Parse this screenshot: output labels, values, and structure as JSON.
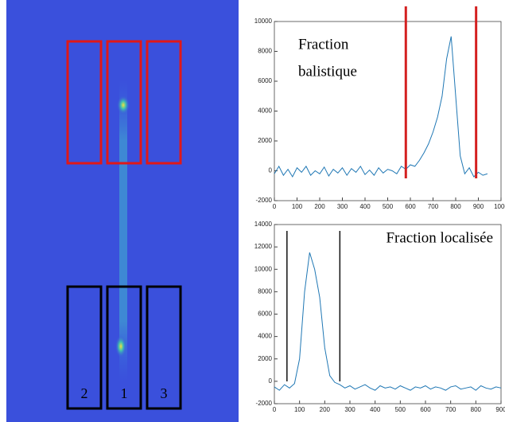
{
  "image": {
    "box_labels": [
      "2",
      "1",
      "3"
    ]
  },
  "chart_data": [
    {
      "type": "line",
      "annotation": [
        "Fraction",
        "balistique"
      ],
      "x": [
        0,
        20,
        40,
        60,
        80,
        100,
        120,
        140,
        160,
        180,
        200,
        220,
        240,
        260,
        280,
        300,
        320,
        340,
        360,
        380,
        400,
        420,
        440,
        460,
        480,
        500,
        520,
        540,
        560,
        580,
        600,
        620,
        640,
        660,
        680,
        700,
        720,
        740,
        760,
        780,
        800,
        820,
        840,
        860,
        880,
        900,
        920,
        940
      ],
      "series": [
        {
          "name": null,
          "color": "#1f77b4",
          "values": [
            -200,
            300,
            -300,
            100,
            -400,
            200,
            -100,
            300,
            -300,
            0,
            -200,
            250,
            -350,
            100,
            -150,
            200,
            -300,
            150,
            -100,
            300,
            -250,
            50,
            -300,
            200,
            -150,
            100,
            0,
            -200,
            300,
            100,
            400,
            300,
            700,
            1200,
            1800,
            2600,
            3600,
            5000,
            7500,
            9000,
            5000,
            1000,
            -200,
            200,
            -400,
            -100,
            -300,
            -200
          ]
        }
      ],
      "vlines": [
        580,
        890
      ],
      "vline_color": "#d42020",
      "xlim": [
        0,
        1000
      ],
      "xticks": [
        0,
        100,
        200,
        300,
        400,
        500,
        600,
        700,
        800,
        900,
        1000
      ],
      "ylim": [
        -2000,
        10000
      ],
      "yticks": [
        -2000,
        0,
        2000,
        4000,
        6000,
        8000,
        10000
      ]
    },
    {
      "type": "line",
      "annotation": [
        "Fraction localisée"
      ],
      "x": [
        0,
        20,
        40,
        60,
        80,
        100,
        120,
        140,
        160,
        180,
        200,
        220,
        240,
        260,
        280,
        300,
        320,
        340,
        360,
        380,
        400,
        420,
        440,
        460,
        480,
        500,
        520,
        540,
        560,
        580,
        600,
        620,
        640,
        660,
        680,
        700,
        720,
        740,
        760,
        780,
        800,
        820,
        840,
        860,
        880,
        900
      ],
      "series": [
        {
          "name": null,
          "color": "#1f77b4",
          "values": [
            -500,
            -800,
            -300,
            -600,
            -200,
            2000,
            8000,
            11500,
            10000,
            7500,
            3000,
            500,
            -100,
            -300,
            -600,
            -400,
            -700,
            -500,
            -300,
            -600,
            -800,
            -400,
            -600,
            -500,
            -700,
            -400,
            -600,
            -800,
            -500,
            -600,
            -400,
            -700,
            -500,
            -600,
            -800,
            -500,
            -400,
            -700,
            -600,
            -500,
            -800,
            -400,
            -600,
            -700,
            -500,
            -600
          ]
        }
      ],
      "vlines": [
        50,
        260
      ],
      "vline_color": "#111111",
      "xlim": [
        0,
        900
      ],
      "xticks": [
        0,
        100,
        200,
        300,
        400,
        500,
        600,
        700,
        800,
        900
      ],
      "ylim": [
        -2000,
        14000
      ],
      "yticks": [
        -2000,
        0,
        2000,
        4000,
        6000,
        8000,
        10000,
        12000,
        14000
      ]
    }
  ]
}
